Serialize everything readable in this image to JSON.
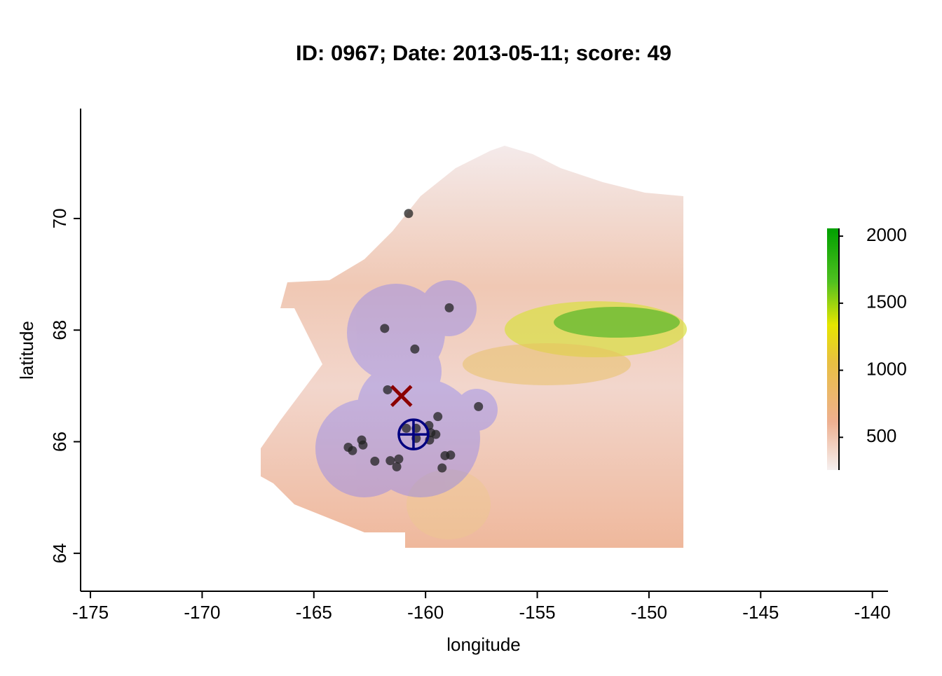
{
  "chart_data": {
    "type": "scatter",
    "title": "ID: 0967;  Date: 2013-05-11;  score: 49",
    "xlabel": "longitude",
    "ylabel": "latitude",
    "xlim": [
      -175.44,
      -139.3
    ],
    "ylim": [
      63.32,
      71.97
    ],
    "xticks": [
      -175,
      -170,
      -165,
      -160,
      -155,
      -150,
      -145,
      -140
    ],
    "yticks": [
      64,
      66,
      68,
      70
    ],
    "x": [
      -160.76,
      -158.94,
      -161.83,
      -160.48,
      -161.7,
      -157.63,
      -159.45,
      -160.86,
      -160.42,
      -159.85,
      -159.76,
      -159.54,
      -159.82,
      -163.46,
      -163.27,
      -162.86,
      -162.8,
      -162.27,
      -161.58,
      -161.2,
      -161.29,
      -159.26,
      -159.13,
      -158.88,
      -160.42
    ],
    "y": [
      70.09,
      68.4,
      68.03,
      67.66,
      66.93,
      66.63,
      66.45,
      66.24,
      66.24,
      66.29,
      66.16,
      66.13,
      66.03,
      65.9,
      65.84,
      66.03,
      65.94,
      65.65,
      65.66,
      65.69,
      65.55,
      65.53,
      65.75,
      65.76,
      66.06
    ],
    "color": "#222222",
    "cross": {
      "x": -161.08,
      "y": 66.82,
      "color": "#8b0000"
    },
    "target": {
      "x": -160.54,
      "y": 66.13,
      "color": "#000080"
    },
    "colorbar": {
      "lim": [
        256,
        2058
      ],
      "ticks": [
        500,
        1000,
        1500,
        2000
      ]
    }
  }
}
